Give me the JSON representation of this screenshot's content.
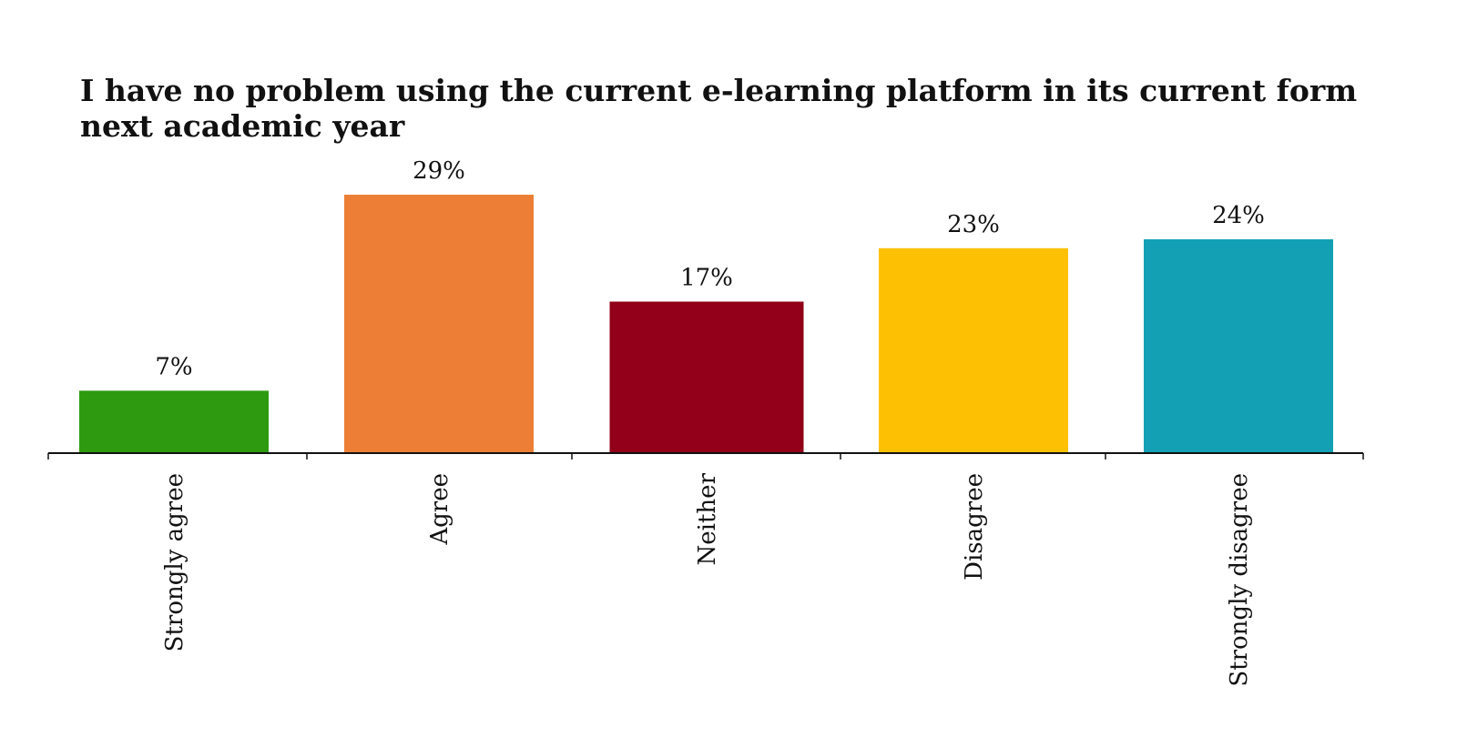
{
  "chart_data": {
    "type": "bar",
    "title": "I have no problem using the current e-learning platform in its current form next academic year",
    "xlabel": "",
    "ylabel": "",
    "categories": [
      "Strongly agree",
      "Agree",
      "Neither",
      "Disagree",
      "Strongly disagree"
    ],
    "values": [
      7,
      29,
      17,
      23,
      24
    ],
    "value_labels": [
      "7%",
      "29%",
      "17%",
      "23%",
      "24%"
    ],
    "colors": [
      "#2e9a0f",
      "#ec7f35",
      "#910018",
      "#fdc002",
      "#13a0b4"
    ],
    "ylim": [
      0,
      29
    ],
    "grid": false,
    "legend": "none"
  }
}
